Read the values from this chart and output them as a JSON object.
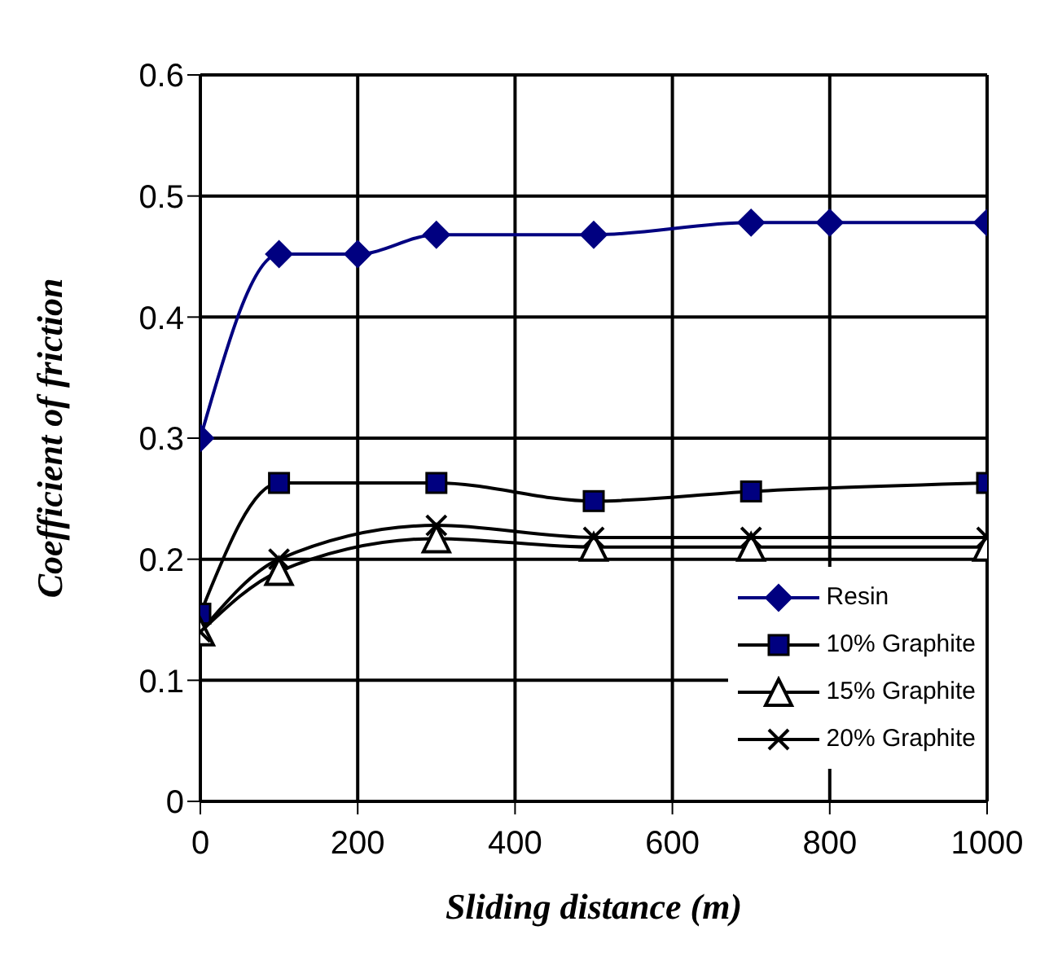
{
  "chart_data": {
    "type": "line",
    "xlabel": "Sliding distance (m)",
    "ylabel": "Coefficient of friction",
    "xlim": [
      0,
      1000
    ],
    "xticks": [
      0,
      200,
      400,
      600,
      800,
      1000
    ],
    "ylim": [
      0,
      0.6
    ],
    "yticks": [
      0,
      0.1,
      0.2,
      0.3,
      0.4,
      0.5,
      0.6
    ],
    "grid": true,
    "legend": "bottom right",
    "series": [
      {
        "name": "Resin",
        "color": "#000080",
        "marker": "diamond",
        "x": [
          0,
          100,
          200,
          300,
          500,
          700,
          800,
          1000
        ],
        "values": [
          0.3,
          0.452,
          0.452,
          0.468,
          0.468,
          0.478,
          0.478,
          0.478
        ]
      },
      {
        "name": "10% Graphite",
        "color": "#000000",
        "marker": "square",
        "x": [
          0,
          100,
          300,
          500,
          700,
          1000
        ],
        "values": [
          0.155,
          0.263,
          0.263,
          0.248,
          0.256,
          0.263
        ]
      },
      {
        "name": "15% Graphite",
        "color": "#000000",
        "marker": "triangle",
        "x": [
          0,
          100,
          300,
          500,
          700,
          1000
        ],
        "values": [
          0.14,
          0.19,
          0.217,
          0.21,
          0.21,
          0.21
        ]
      },
      {
        "name": "20% Graphite",
        "color": "#000000",
        "marker": "cross",
        "x": [
          0,
          100,
          300,
          500,
          700,
          1000
        ],
        "values": [
          0.14,
          0.2,
          0.228,
          0.218,
          0.218,
          0.218
        ]
      }
    ]
  }
}
